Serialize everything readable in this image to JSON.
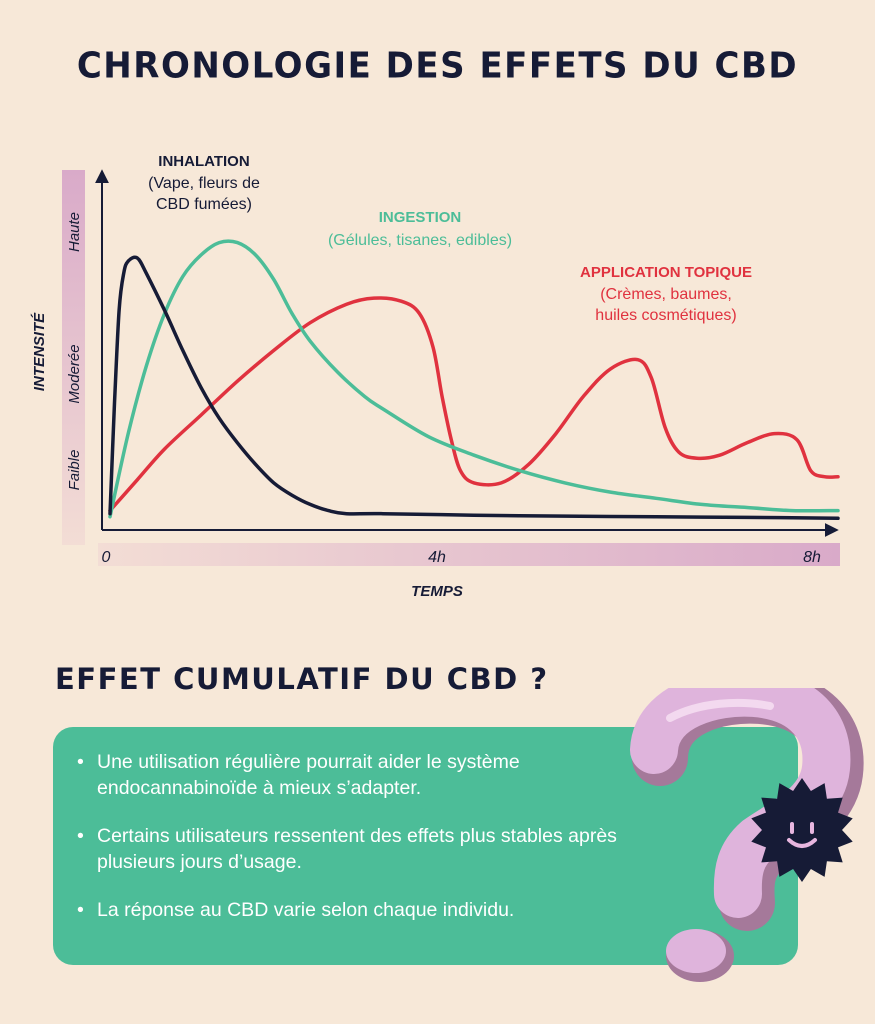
{
  "title": "CHRONOLOGIE DES EFFETS DU CBD",
  "chart_data": {
    "type": "line",
    "xlabel": "TEMPS",
    "ylabel": "INTENSITÉ",
    "xlim": [
      0,
      8
    ],
    "ylim": [
      0,
      100
    ],
    "x_ticks": [
      {
        "value": 0,
        "label": "0"
      },
      {
        "value": 4,
        "label": "4h"
      },
      {
        "value": 8,
        "label": "8h"
      }
    ],
    "y_levels": [
      "Faible",
      "Moderée",
      "Haute"
    ],
    "series": [
      {
        "name": "INHALATION",
        "description": "(Vape, fleurs de CBD fumées)",
        "color": "#161b36",
        "x": [
          0,
          0.05,
          0.1,
          0.15,
          0.2,
          0.3,
          0.4,
          0.6,
          0.8,
          1.0,
          1.2,
          1.4,
          1.6,
          1.8,
          2.0,
          2.2,
          2.4,
          2.6,
          3.0,
          4.0,
          5.0,
          6.0,
          7.0,
          8.0
        ],
        "y": [
          4,
          40,
          70,
          82,
          86,
          87,
          82,
          70,
          57,
          45,
          35,
          27,
          20,
          14,
          10,
          7,
          5,
          4,
          4,
          3.5,
          3.2,
          3,
          2.8,
          2.5
        ]
      },
      {
        "name": "INGESTION",
        "description": "(Gélules, tisanes, edibles)",
        "color": "#4cbd98",
        "x": [
          0,
          0.2,
          0.4,
          0.6,
          0.8,
          1.0,
          1.2,
          1.4,
          1.6,
          1.8,
          2.0,
          2.2,
          2.5,
          2.8,
          3.0,
          3.5,
          4.0,
          4.5,
          5.0,
          5.5,
          6.0,
          6.5,
          7.0,
          7.5,
          8.0
        ],
        "y": [
          3,
          30,
          52,
          69,
          81,
          88,
          92,
          92,
          88,
          80,
          69,
          60,
          50,
          42,
          38,
          29,
          23,
          18,
          14,
          11,
          9,
          7,
          6,
          5,
          5
        ]
      },
      {
        "name": "APPLICATION TOPIQUE",
        "description": "(Crèmes, baumes, huiles cosmétiques)",
        "color": "#e0323f",
        "x": [
          0,
          0.3,
          0.6,
          1.0,
          1.4,
          1.8,
          2.2,
          2.6,
          2.9,
          3.2,
          3.4,
          3.55,
          3.65,
          3.75,
          3.85,
          4.0,
          4.3,
          4.6,
          4.9,
          5.2,
          5.5,
          5.8,
          5.95,
          6.1,
          6.25,
          6.45,
          6.7,
          7.0,
          7.3,
          7.55,
          7.7,
          7.85,
          8.0
        ],
        "y": [
          5,
          15,
          25,
          36,
          47,
          57,
          66,
          72,
          74,
          73,
          69,
          58,
          42,
          28,
          18,
          14,
          14,
          20,
          30,
          42,
          51,
          54,
          48,
          32,
          24,
          22,
          23,
          27,
          30,
          28,
          18,
          16,
          16
        ]
      }
    ]
  },
  "section_title": "EFFET CUMULATIF DU CBD ?",
  "bullets": [
    "Une utilisation régulière pourrait aider le système endocannabinoïde à mieux s’adapter.",
    "Certains utilisateurs ressentent des effets plus stables après plusieurs jours d’usage.",
    "La réponse au CBD varie selon chaque individu."
  ],
  "decoration": {
    "icon": "question-mark-icon",
    "mascot": "smiley-star-icon"
  }
}
